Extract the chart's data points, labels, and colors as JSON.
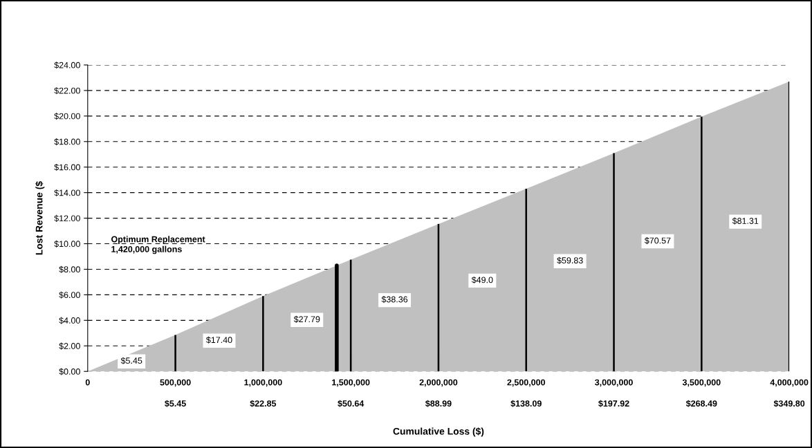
{
  "chart_data": {
    "type": "area",
    "ylabel": "Lost Revenue ($",
    "xlabel": "Cumulative Loss ($)",
    "x": [
      0,
      500000,
      1000000,
      1500000,
      2000000,
      2500000,
      3000000,
      3500000,
      4000000
    ],
    "series": [
      {
        "color": "#c0c0c0",
        "values": [
          0,
          2.85,
          5.9,
          8.75,
          11.55,
          14.3,
          17.1,
          19.95,
          22.7
        ]
      },
      {
        "type": "bar",
        "color": "#000000",
        "values": [
          0,
          2.85,
          5.9,
          8.75,
          11.55,
          14.3,
          17.1,
          19.95,
          22.7
        ]
      }
    ],
    "xlim": [
      0,
      4000000
    ],
    "xticks": [
      0,
      {
        "value": 500000,
        "label": "500,000"
      },
      {
        "value": 1000000,
        "label": "1,000,000"
      },
      {
        "value": 1500000,
        "label": "1,500,000"
      },
      {
        "value": 2000000,
        "label": "2,000,000"
      },
      {
        "value": 2500000,
        "label": "2,500,000"
      },
      {
        "value": 3000000,
        "label": "3,000,000"
      },
      {
        "value": 3500000,
        "label": "3,500,000"
      },
      {
        "value": 4000000,
        "label": "4,000,000"
      }
    ],
    "ylim": [
      0,
      24
    ],
    "yticks": [
      {
        "value": 0,
        "label": "$0.00"
      },
      {
        "value": 2,
        "label": "$2.00"
      },
      {
        "value": 4,
        "label": "$4.00"
      },
      {
        "value": 6,
        "label": "$6.00"
      },
      {
        "value": 8,
        "label": "$8.00"
      },
      {
        "value": 10,
        "label": "$10.00"
      },
      {
        "value": 12,
        "label": "$12.00"
      },
      {
        "value": 14,
        "label": "$14.00"
      },
      {
        "value": 16,
        "label": "$16.00"
      },
      {
        "value": 18,
        "label": "$18.00"
      },
      {
        "value": 20,
        "label": "$20.00"
      },
      {
        "value": 22,
        "label": "$22.00"
      },
      {
        "value": 24,
        "label": "$24.00"
      }
    ],
    "grid": "y",
    "ref_lines": [
      {
        "axis": "x",
        "value": 1420000,
        "label": "Optimum Replacement\n1,420,000 gallons",
        "color": "#000000"
      }
    ],
    "annotations": [
      "$5.45",
      "$17.40",
      "$27.79",
      "$38.36",
      "$49.0",
      "$59.83",
      "$70.57",
      "$81.31",
      "$5.45",
      "$22.85",
      "$50.64",
      "$88.99",
      "$138.09",
      "$197.92",
      "$268.49",
      "$349.80"
    ]
  }
}
